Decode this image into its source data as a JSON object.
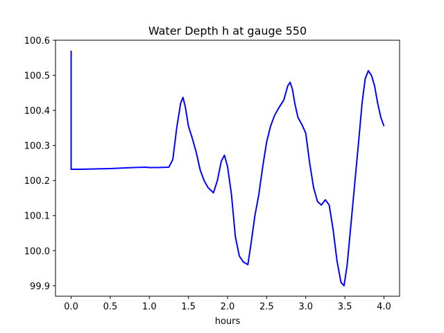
{
  "chart_data": {
    "type": "line",
    "title": "Water Depth h at gauge 550",
    "xlabel": "hours",
    "ylabel": "",
    "xlim": [
      -0.2,
      4.2
    ],
    "ylim": [
      99.87,
      100.6
    ],
    "x_ticks": [
      0.0,
      0.5,
      1.0,
      1.5,
      2.0,
      2.5,
      3.0,
      3.5,
      4.0
    ],
    "x_tick_labels": [
      "0.0",
      "0.5",
      "1.0",
      "1.5",
      "2.0",
      "2.5",
      "3.0",
      "3.5",
      "4.0"
    ],
    "y_ticks": [
      99.9,
      100.0,
      100.1,
      100.2,
      100.3,
      100.4,
      100.5,
      100.6
    ],
    "y_tick_labels": [
      "99.9",
      "100.0",
      "100.1",
      "100.2",
      "100.3",
      "100.4",
      "100.5",
      "100.6"
    ],
    "grid": false,
    "colors": {
      "series": "#0000ff"
    },
    "series": [
      {
        "x": [
          0.0,
          0.0,
          0.0,
          0.1,
          0.3,
          0.5,
          0.6,
          0.7,
          0.8,
          0.95,
          1.0,
          1.1,
          1.25,
          1.3,
          1.35,
          1.4,
          1.43,
          1.46,
          1.5,
          1.55,
          1.6,
          1.65,
          1.7,
          1.75,
          1.82,
          1.87,
          1.92,
          1.96,
          2.0,
          2.05,
          2.1,
          2.15,
          2.2,
          2.26,
          2.3,
          2.35,
          2.4,
          2.45,
          2.5,
          2.55,
          2.6,
          2.65,
          2.72,
          2.77,
          2.8,
          2.83,
          2.86,
          2.9,
          2.95,
          3.0,
          3.05,
          3.1,
          3.15,
          3.2,
          3.25,
          3.3,
          3.35,
          3.4,
          3.45,
          3.49,
          3.53,
          3.58,
          3.63,
          3.68,
          3.72,
          3.76,
          3.8,
          3.84,
          3.88,
          3.92,
          3.96,
          4.0
        ],
        "y": [
          100.57,
          100.4,
          100.232,
          100.232,
          100.233,
          100.234,
          100.235,
          100.236,
          100.237,
          100.238,
          100.237,
          100.237,
          100.238,
          100.26,
          100.35,
          100.42,
          100.437,
          100.41,
          100.355,
          100.32,
          100.28,
          100.23,
          100.2,
          100.18,
          100.165,
          100.2,
          100.255,
          100.272,
          100.24,
          100.16,
          100.04,
          99.985,
          99.968,
          99.96,
          100.02,
          100.1,
          100.16,
          100.24,
          100.31,
          100.355,
          100.385,
          100.405,
          100.43,
          100.47,
          100.48,
          100.46,
          100.42,
          100.38,
          100.36,
          100.335,
          100.25,
          100.18,
          100.14,
          100.13,
          100.145,
          100.13,
          100.06,
          99.97,
          99.91,
          99.9,
          99.96,
          100.08,
          100.2,
          100.32,
          100.42,
          100.49,
          100.513,
          100.5,
          100.47,
          100.42,
          100.38,
          100.355
        ]
      }
    ]
  }
}
